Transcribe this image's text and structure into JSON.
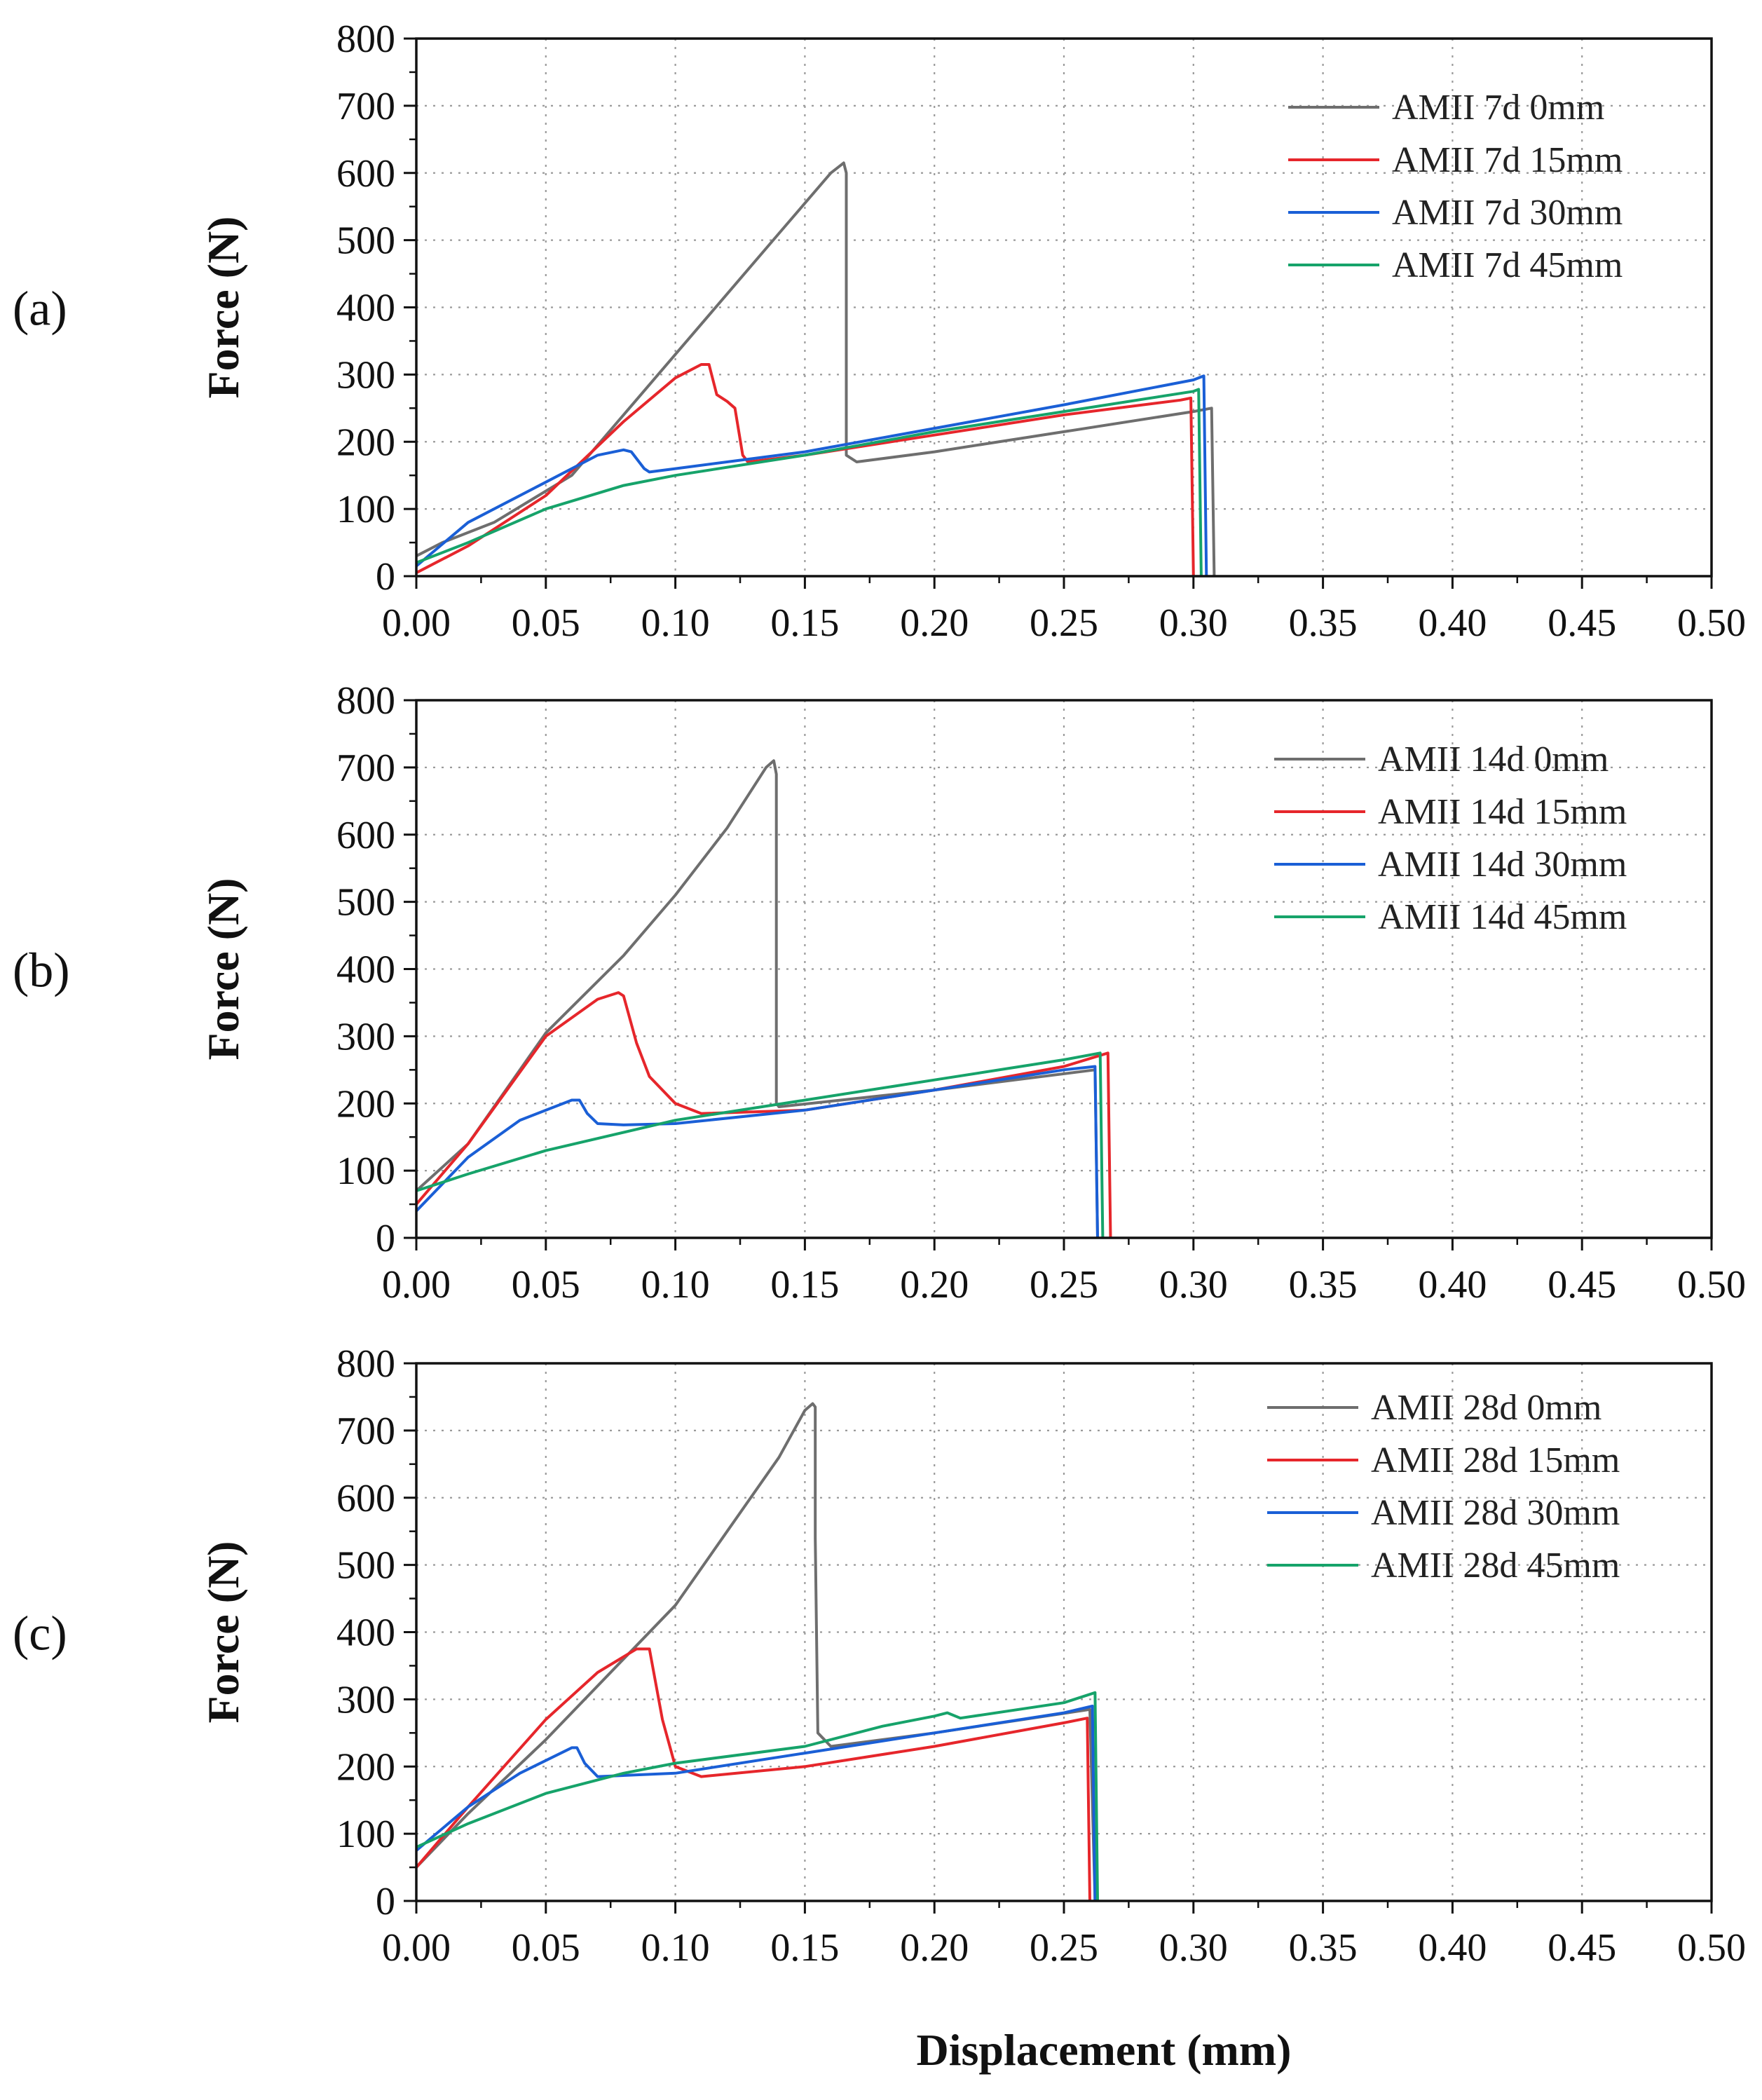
{
  "figure": {
    "xlabel_common": "Displacement (mm)"
  },
  "chart_data": [
    {
      "type": "line",
      "panel_label": "(a)",
      "ylabel": "Force (N)",
      "xlim": [
        0.0,
        0.5
      ],
      "ylim": [
        0,
        800
      ],
      "xticks": [
        "0.00",
        "0.05",
        "0.10",
        "0.15",
        "0.20",
        "0.25",
        "0.30",
        "0.35",
        "0.40",
        "0.45",
        "0.50"
      ],
      "yticks": [
        "0",
        "100",
        "200",
        "300",
        "400",
        "500",
        "600",
        "700",
        "800"
      ],
      "grid": true,
      "legend_position": "top-right",
      "series": [
        {
          "name": "AMII 7d 0mm",
          "color": "#6e6e6e",
          "x": [
            0,
            0.01,
            0.03,
            0.06,
            0.08,
            0.1,
            0.12,
            0.14,
            0.16,
            0.165,
            0.166,
            0.166,
            0.17,
            0.2,
            0.25,
            0.3,
            0.307,
            0.308
          ],
          "y": [
            30,
            50,
            80,
            150,
            240,
            330,
            420,
            510,
            600,
            615,
            600,
            180,
            170,
            185,
            215,
            245,
            250,
            0
          ]
        },
        {
          "name": "AMII 7d 15mm",
          "color": "#e6262b",
          "x": [
            0,
            0.02,
            0.05,
            0.08,
            0.1,
            0.11,
            0.113,
            0.116,
            0.12,
            0.123,
            0.126,
            0.128,
            0.15,
            0.2,
            0.25,
            0.295,
            0.299,
            0.3
          ],
          "y": [
            5,
            45,
            120,
            230,
            295,
            315,
            315,
            270,
            260,
            250,
            180,
            170,
            180,
            210,
            240,
            262,
            265,
            0
          ]
        },
        {
          "name": "AMII 7d 30mm",
          "color": "#1a5fd6",
          "x": [
            0,
            0.02,
            0.05,
            0.07,
            0.08,
            0.083,
            0.088,
            0.09,
            0.1,
            0.15,
            0.2,
            0.25,
            0.3,
            0.304,
            0.305
          ],
          "y": [
            15,
            80,
            140,
            180,
            188,
            185,
            160,
            155,
            160,
            185,
            220,
            255,
            292,
            298,
            0
          ]
        },
        {
          "name": "AMII 7d 45mm",
          "color": "#16a36a",
          "x": [
            0,
            0.02,
            0.05,
            0.08,
            0.1,
            0.15,
            0.2,
            0.25,
            0.3,
            0.302,
            0.303
          ],
          "y": [
            20,
            50,
            100,
            135,
            150,
            180,
            215,
            245,
            275,
            278,
            0
          ]
        }
      ]
    },
    {
      "type": "line",
      "panel_label": "(b)",
      "ylabel": "Force (N)",
      "xlim": [
        0.0,
        0.5
      ],
      "ylim": [
        0,
        800
      ],
      "xticks": [
        "0.00",
        "0.05",
        "0.10",
        "0.15",
        "0.20",
        "0.25",
        "0.30",
        "0.35",
        "0.40",
        "0.45",
        "0.50"
      ],
      "yticks": [
        "0",
        "100",
        "200",
        "300",
        "400",
        "500",
        "600",
        "700",
        "800"
      ],
      "grid": true,
      "legend_position": "top-right",
      "series": [
        {
          "name": "AMII 14d 0mm",
          "color": "#6e6e6e",
          "x": [
            0,
            0.02,
            0.05,
            0.08,
            0.1,
            0.12,
            0.135,
            0.138,
            0.139,
            0.139,
            0.14,
            0.2,
            0.262,
            0.263
          ],
          "y": [
            70,
            140,
            305,
            420,
            510,
            610,
            700,
            710,
            690,
            200,
            195,
            220,
            250,
            0
          ]
        },
        {
          "name": "AMII 14d 15mm",
          "color": "#e6262b",
          "x": [
            0,
            0.02,
            0.05,
            0.07,
            0.078,
            0.08,
            0.085,
            0.09,
            0.1,
            0.11,
            0.15,
            0.2,
            0.25,
            0.267,
            0.268
          ],
          "y": [
            50,
            140,
            300,
            355,
            365,
            360,
            290,
            240,
            200,
            185,
            190,
            220,
            255,
            275,
            0
          ]
        },
        {
          "name": "AMII 14d 30mm",
          "color": "#1a5fd6",
          "x": [
            0,
            0.02,
            0.04,
            0.06,
            0.063,
            0.066,
            0.07,
            0.08,
            0.1,
            0.15,
            0.2,
            0.25,
            0.262,
            0.263
          ],
          "y": [
            40,
            120,
            175,
            205,
            205,
            185,
            170,
            168,
            170,
            190,
            220,
            250,
            255,
            0
          ]
        },
        {
          "name": "AMII 14d 45mm",
          "color": "#16a36a",
          "x": [
            0,
            0.02,
            0.05,
            0.1,
            0.15,
            0.2,
            0.25,
            0.264,
            0.265
          ],
          "y": [
            70,
            95,
            130,
            175,
            205,
            235,
            265,
            275,
            0
          ]
        }
      ]
    },
    {
      "type": "line",
      "panel_label": "(c)",
      "ylabel": "Force (N)",
      "xlim": [
        0.0,
        0.5
      ],
      "ylim": [
        0,
        800
      ],
      "xticks": [
        "0.00",
        "0.05",
        "0.10",
        "0.15",
        "0.20",
        "0.25",
        "0.30",
        "0.35",
        "0.40",
        "0.45",
        "0.50"
      ],
      "yticks": [
        "0",
        "100",
        "200",
        "300",
        "400",
        "500",
        "600",
        "700",
        "800"
      ],
      "grid": true,
      "legend_position": "top-right",
      "series": [
        {
          "name": "AMII 28d 0mm",
          "color": "#6e6e6e",
          "x": [
            0,
            0.02,
            0.05,
            0.08,
            0.1,
            0.12,
            0.14,
            0.15,
            0.153,
            0.154,
            0.154,
            0.155,
            0.16,
            0.2,
            0.26,
            0.262
          ],
          "y": [
            50,
            130,
            240,
            360,
            440,
            550,
            660,
            730,
            740,
            735,
            540,
            250,
            230,
            250,
            285,
            0
          ]
        },
        {
          "name": "AMII 28d 15mm",
          "color": "#e6262b",
          "x": [
            0,
            0.02,
            0.05,
            0.07,
            0.085,
            0.09,
            0.095,
            0.1,
            0.11,
            0.15,
            0.2,
            0.25,
            0.259,
            0.26
          ],
          "y": [
            50,
            140,
            270,
            340,
            375,
            375,
            270,
            200,
            185,
            200,
            230,
            265,
            272,
            0
          ]
        },
        {
          "name": "AMII 28d 30mm",
          "color": "#1a5fd6",
          "x": [
            0,
            0.02,
            0.04,
            0.06,
            0.062,
            0.065,
            0.07,
            0.1,
            0.15,
            0.2,
            0.25,
            0.261,
            0.262
          ],
          "y": [
            75,
            140,
            190,
            228,
            228,
            205,
            185,
            190,
            220,
            250,
            280,
            290,
            0
          ]
        },
        {
          "name": "AMII 28d 45mm",
          "color": "#16a36a",
          "x": [
            0,
            0.02,
            0.05,
            0.08,
            0.1,
            0.15,
            0.18,
            0.2,
            0.205,
            0.21,
            0.25,
            0.262,
            0.263
          ],
          "y": [
            80,
            115,
            160,
            190,
            205,
            230,
            260,
            275,
            280,
            272,
            295,
            310,
            0
          ]
        }
      ]
    }
  ]
}
